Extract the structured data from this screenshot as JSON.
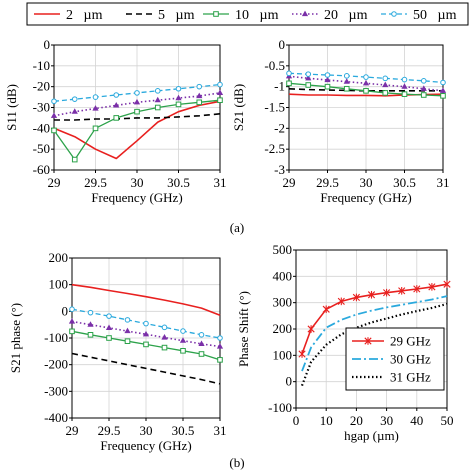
{
  "figure": {
    "caption_a": "(a)",
    "caption_b": "(b)"
  },
  "colors": {
    "gap_2": "#e8201f",
    "gap_5": "#000000",
    "gap_10": "#2ca24a",
    "gap_20": "#7a2fa8",
    "gap_50": "#2aa9dd",
    "f29": "#e8201f",
    "f30": "#2aa9dd",
    "f31": "#000000"
  },
  "legend_top": {
    "entries": [
      {
        "label": "2   µm",
        "key": "gap_2"
      },
      {
        "label": "5   µm",
        "key": "gap_5"
      },
      {
        "label": "10   µm",
        "key": "gap_10"
      },
      {
        "label": "20   µm",
        "key": "gap_20"
      },
      {
        "label": "50   µm",
        "key": "gap_50"
      }
    ]
  },
  "chart_data": [
    {
      "id": "s11",
      "type": "line",
      "title": "",
      "xlabel": "Frequency (GHz)",
      "ylabel": "S11 (dB)",
      "xlim": [
        29,
        31
      ],
      "ylim": [
        -60,
        0
      ],
      "x_ticks": [
        29,
        29.5,
        30,
        30.5,
        31
      ],
      "x_tick_labels": [
        "29",
        "29.5",
        "30",
        "30.5",
        "31"
      ],
      "y_ticks": [
        0,
        -10,
        -20,
        -30,
        -40,
        -50,
        -60
      ],
      "y_tick_labels": [
        "0",
        "-10",
        "-20",
        "-30",
        "-40",
        "-50",
        "-60"
      ],
      "grid": true,
      "x": [
        29,
        29.25,
        29.5,
        29.75,
        30,
        30.25,
        30.5,
        30.75,
        31
      ],
      "series": [
        {
          "key": "gap_2",
          "values": [
            -40,
            -44,
            -50,
            -54.5,
            -46,
            -37,
            -32,
            -29,
            -27
          ]
        },
        {
          "key": "gap_5",
          "values": [
            -36,
            -36,
            -35.5,
            -35.5,
            -35,
            -35,
            -34.5,
            -34,
            -33
          ]
        },
        {
          "key": "gap_10",
          "values": [
            -41,
            -55,
            -40,
            -35,
            -32,
            -30,
            -28.5,
            -27.5,
            -26.5
          ]
        },
        {
          "key": "gap_20",
          "values": [
            -34,
            -32,
            -30.5,
            -29,
            -27.5,
            -26.5,
            -25.5,
            -24.5,
            -23
          ]
        },
        {
          "key": "gap_50",
          "values": [
            -27,
            -26,
            -25,
            -24,
            -23,
            -22,
            -21,
            -20,
            -19
          ]
        }
      ]
    },
    {
      "id": "s21",
      "type": "line",
      "title": "",
      "xlabel": "Frequency (GHz)",
      "ylabel": "S21 (dB)",
      "xlim": [
        29,
        31
      ],
      "ylim": [
        -3,
        0
      ],
      "x_ticks": [
        29,
        29.5,
        30,
        30.5,
        31
      ],
      "x_tick_labels": [
        "29",
        "29.5",
        "30",
        "30.5",
        "31"
      ],
      "y_ticks": [
        0,
        -0.5,
        -1,
        -1.5,
        -2,
        -2.5,
        -3
      ],
      "y_tick_labels": [
        "0",
        "-0.5",
        "-1",
        "-1.5",
        "-2",
        "-2.5",
        "-3"
      ],
      "grid": true,
      "x": [
        29,
        29.25,
        29.5,
        29.75,
        30,
        30.25,
        30.5,
        30.75,
        31
      ],
      "series": [
        {
          "key": "gap_2",
          "values": [
            -1.18,
            -1.2,
            -1.2,
            -1.21,
            -1.21,
            -1.22,
            -1.2,
            -1.19,
            -1.18
          ]
        },
        {
          "key": "gap_5",
          "values": [
            -1.05,
            -1.07,
            -1.08,
            -1.09,
            -1.1,
            -1.1,
            -1.1,
            -1.1,
            -1.1
          ]
        },
        {
          "key": "gap_10",
          "values": [
            -0.92,
            -0.96,
            -1.0,
            -1.05,
            -1.1,
            -1.15,
            -1.18,
            -1.2,
            -1.22
          ]
        },
        {
          "key": "gap_20",
          "values": [
            -0.75,
            -0.8,
            -0.84,
            -0.88,
            -0.92,
            -0.96,
            -1.0,
            -1.05,
            -1.1
          ]
        },
        {
          "key": "gap_50",
          "values": [
            -0.68,
            -0.7,
            -0.72,
            -0.74,
            -0.77,
            -0.8,
            -0.83,
            -0.86,
            -0.9
          ]
        }
      ]
    },
    {
      "id": "s21_phase",
      "type": "line",
      "title": "",
      "xlabel": "Frequency (GHz)",
      "ylabel": "S21 phase (°)",
      "xlim": [
        29,
        31
      ],
      "ylim": [
        -400,
        200
      ],
      "x_ticks": [
        29,
        29.5,
        30,
        30.5,
        31
      ],
      "x_tick_labels": [
        "29",
        "29.5",
        "30",
        "30.5",
        "31"
      ],
      "y_ticks": [
        200,
        100,
        0,
        -100,
        -200,
        -300,
        -400
      ],
      "y_tick_labels": [
        "200",
        "100",
        "0",
        "-100",
        "-200",
        "-300",
        "-400"
      ],
      "grid": true,
      "x": [
        29,
        29.25,
        29.5,
        29.75,
        30,
        30.25,
        30.5,
        30.75,
        31
      ],
      "series": [
        {
          "key": "gap_2",
          "values": [
            100,
            90,
            78,
            67,
            55,
            42,
            28,
            12,
            -15
          ]
        },
        {
          "key": "gap_5",
          "values": [
            -158,
            -172,
            -186,
            -200,
            -214,
            -228,
            -242,
            -256,
            -272
          ]
        },
        {
          "key": "gap_10",
          "values": [
            -75,
            -88,
            -100,
            -112,
            -124,
            -136,
            -148,
            -160,
            -182
          ]
        },
        {
          "key": "gap_20",
          "values": [
            -38,
            -50,
            -62,
            -74,
            -86,
            -98,
            -110,
            -122,
            -132
          ]
        },
        {
          "key": "gap_50",
          "values": [
            8,
            -5,
            -18,
            -32,
            -46,
            -60,
            -74,
            -88,
            -100
          ]
        }
      ]
    },
    {
      "id": "phase_shift",
      "type": "line",
      "title": "",
      "xlabel": "hgap  (µm)",
      "ylabel": "Phase Shift (°)",
      "xlim": [
        0,
        50
      ],
      "ylim": [
        -100,
        500
      ],
      "x_ticks": [
        0,
        10,
        20,
        30,
        40,
        50
      ],
      "x_tick_labels": [
        "0",
        "10",
        "20",
        "30",
        "40",
        "50"
      ],
      "y_ticks": [
        500,
        400,
        300,
        200,
        100,
        0,
        -100
      ],
      "y_tick_labels": [
        "500",
        "400",
        "300",
        "200",
        "100",
        "0",
        "-100"
      ],
      "grid": true,
      "legend_position": "bottom-right",
      "x": [
        2,
        5,
        10,
        15,
        20,
        25,
        30,
        35,
        40,
        45,
        50
      ],
      "series": [
        {
          "name": "29 GHz",
          "key": "f29",
          "values": [
            105,
            200,
            275,
            305,
            320,
            330,
            338,
            345,
            352,
            360,
            370
          ]
        },
        {
          "name": "30 GHz",
          "key": "f30",
          "values": [
            40,
            130,
            205,
            235,
            255,
            270,
            282,
            292,
            302,
            312,
            325
          ]
        },
        {
          "name": "31 GHz",
          "key": "f31",
          "values": [
            -15,
            75,
            140,
            180,
            205,
            225,
            240,
            255,
            268,
            280,
            295
          ]
        }
      ]
    }
  ]
}
